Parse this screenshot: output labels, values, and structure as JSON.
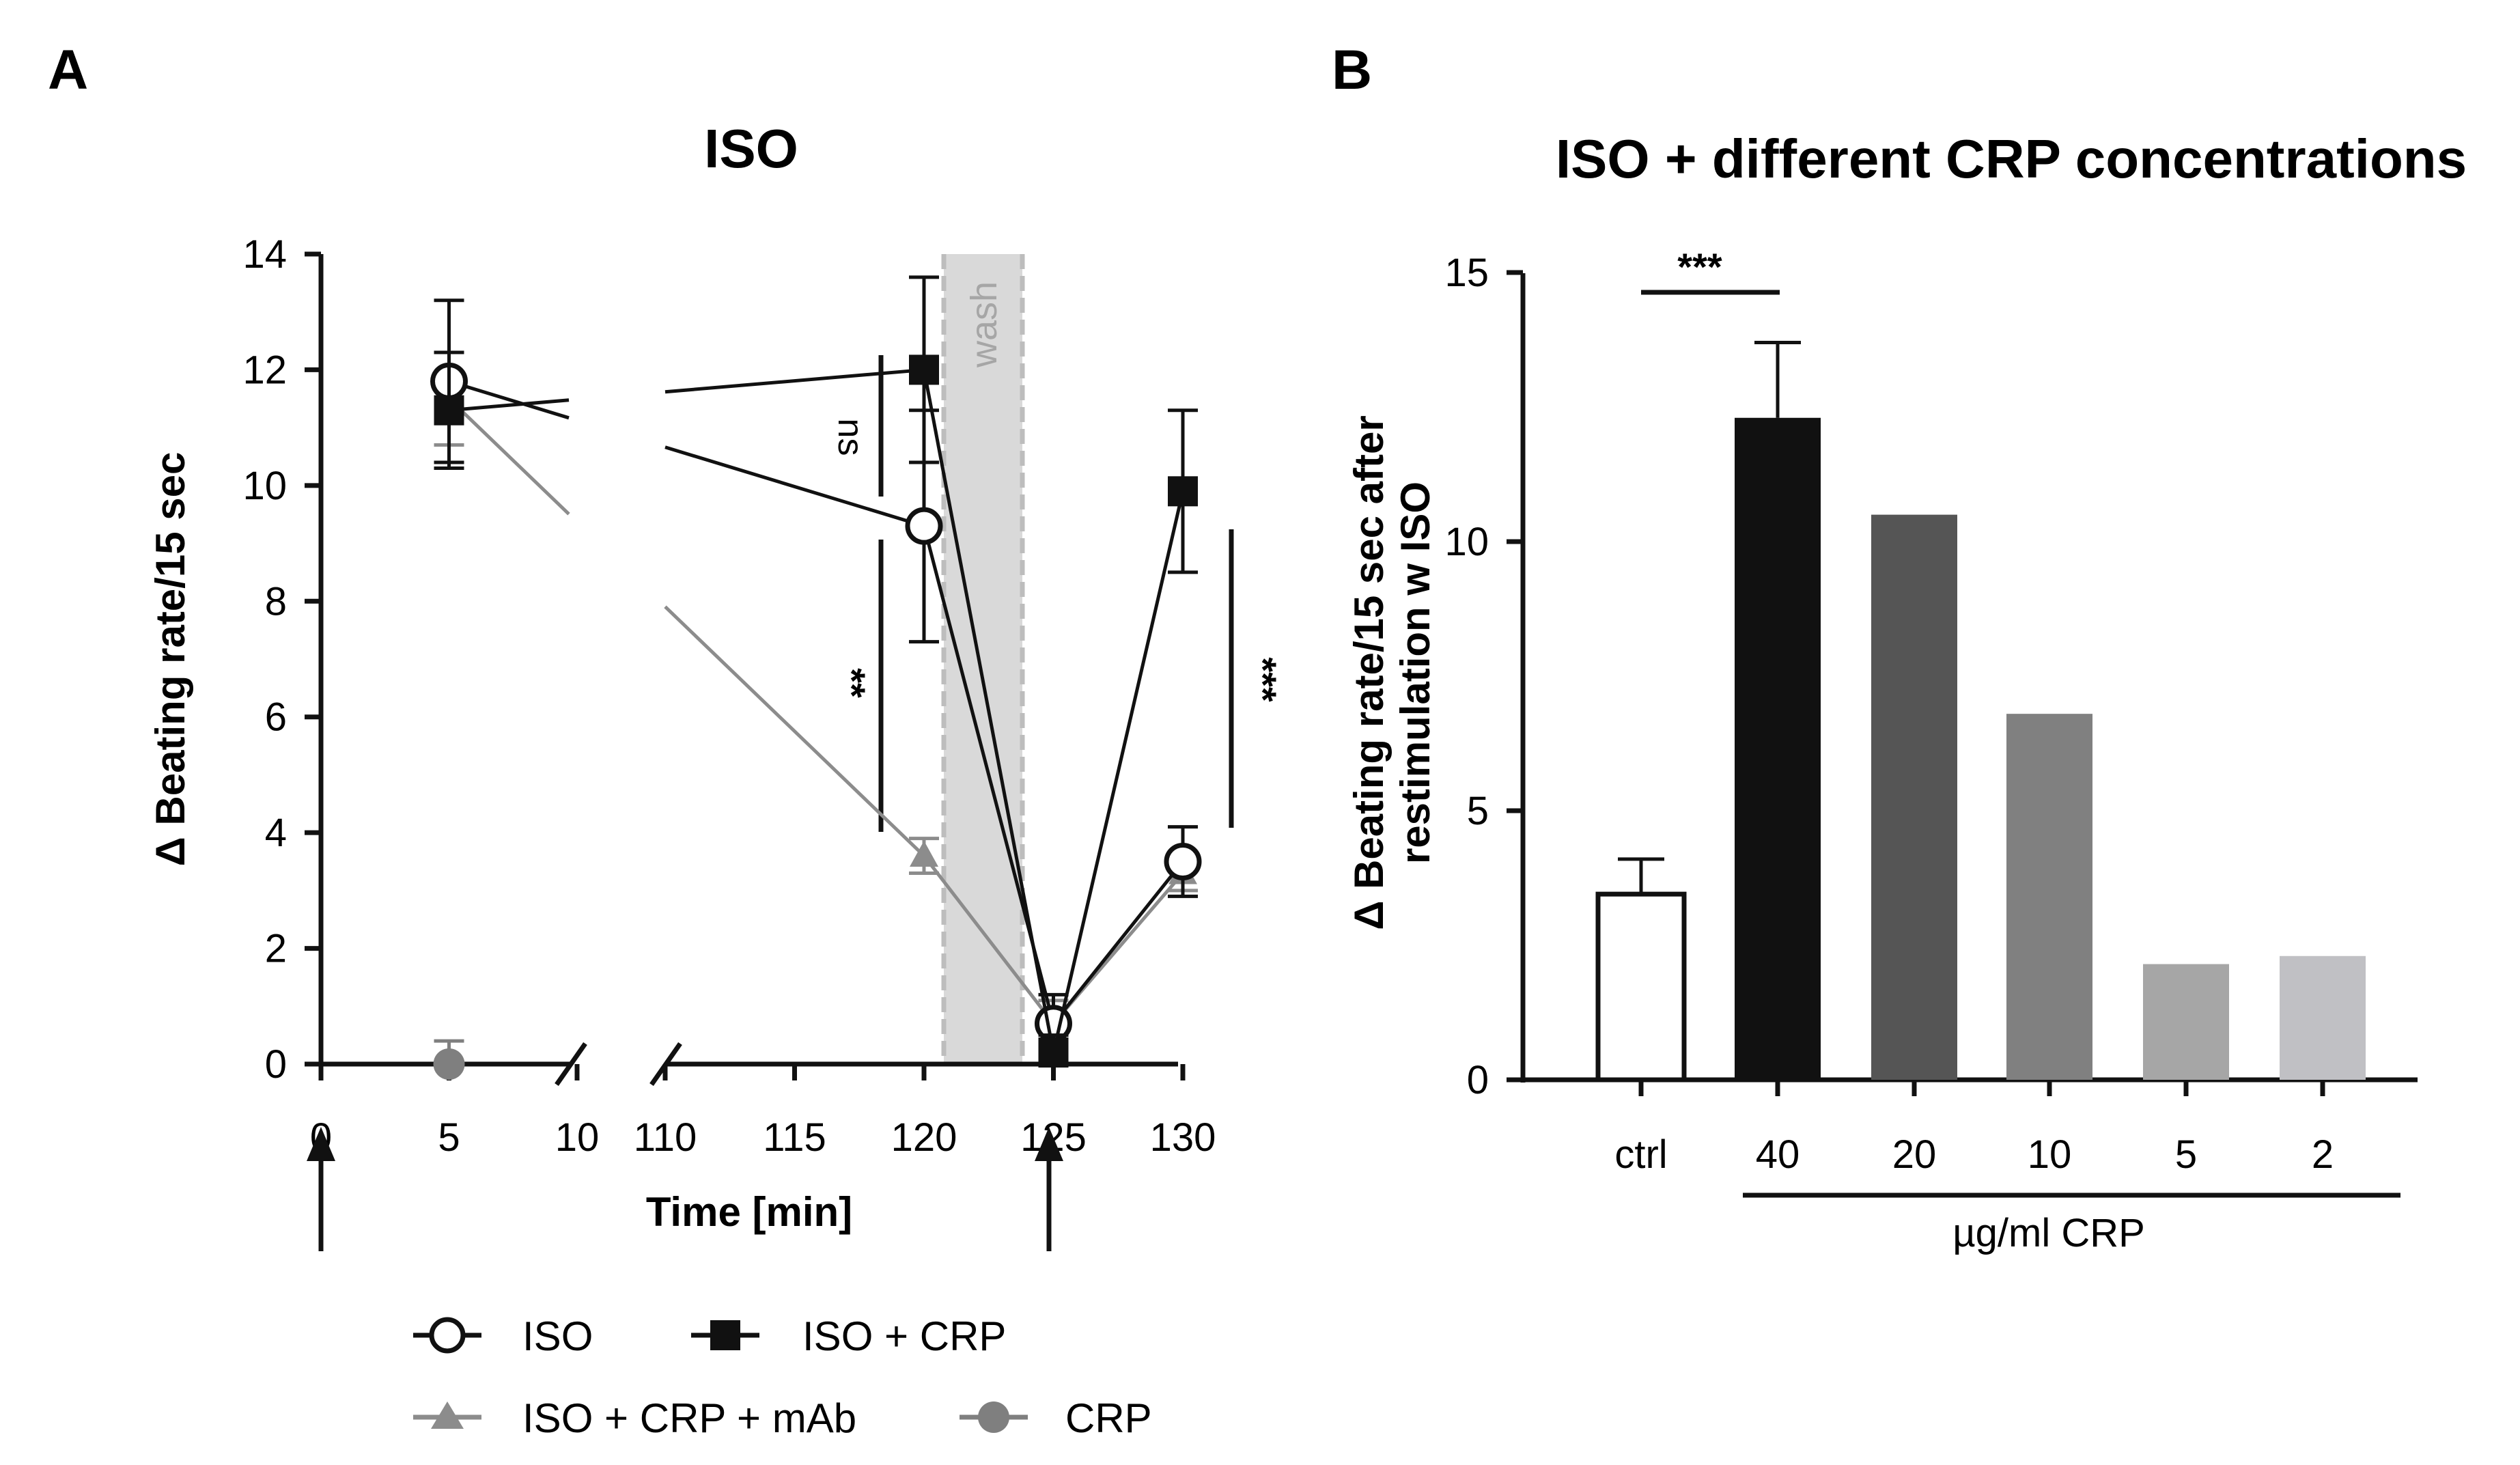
{
  "panel_a": {
    "letter": "A",
    "title": "ISO",
    "ylabel": "Δ Beating rate/15 sec",
    "xlabel": "Time [min]",
    "wash_label": "wash",
    "sig_labels": [
      "ns",
      "**",
      "***"
    ]
  },
  "panel_b": {
    "letter": "B",
    "title": "ISO + different CRP concentrations",
    "ylabel_lines": [
      "Δ Beating rate/15 sec after",
      "restimulation w ISO"
    ],
    "group_label": "µg/ml CRP",
    "sig_label": "***"
  },
  "legend": {
    "items": [
      "ISO",
      "ISO + CRP",
      "ISO + CRP + mAb",
      "CRP"
    ]
  },
  "colors": {
    "black": "#111111",
    "mab_gray": "#8c8c8c",
    "crp_gray": "#7f7f7f",
    "wash_fill": "#d9d9d9",
    "wash_text": "#a6a6a6",
    "bar_20": "#555555",
    "bar_10": "#808080",
    "bar_5": "#a6a6a6",
    "bar_2": "#c0c0c4"
  },
  "chart_data": [
    {
      "type": "line",
      "title": "ISO",
      "xlabel": "Time [min]",
      "ylabel": "Δ Beating rate/15 sec",
      "ylim": [
        0,
        14
      ],
      "yticks": [
        0,
        2,
        4,
        6,
        8,
        10,
        12,
        14
      ],
      "xticks": [
        0,
        5,
        10,
        110,
        115,
        120,
        125,
        130
      ],
      "x_axis_break": [
        10,
        110
      ],
      "wash_interval": [
        121,
        124
      ],
      "stimulation_arrows_at": [
        0,
        125
      ],
      "series": [
        {
          "name": "ISO",
          "x": [
            5,
            120,
            125,
            130
          ],
          "y": [
            11.8,
            9.3,
            0.7,
            3.5
          ],
          "err": [
            1.4,
            2.0,
            0.5,
            0.6
          ]
        },
        {
          "name": "ISO + CRP",
          "x": [
            5,
            120,
            125,
            130
          ],
          "y": [
            11.3,
            12.0,
            0.2,
            9.9
          ],
          "err": [
            1.0,
            1.6,
            0.3,
            1.4
          ]
        },
        {
          "name": "ISO + CRP + mAb",
          "x": [
            5,
            120,
            125,
            130
          ],
          "y": [
            11.5,
            3.6,
            0.7,
            3.3
          ],
          "err": [
            0.8,
            0.3,
            0.4,
            0.3
          ]
        },
        {
          "name": "CRP",
          "x": [
            5
          ],
          "y": [
            0.0
          ],
          "err": [
            0.4
          ]
        }
      ],
      "annotations": [
        {
          "label": "ns",
          "at_x": 120,
          "y_range": [
            9.9,
            12.2
          ]
        },
        {
          "label": "**",
          "at_x": 120,
          "y_range": [
            4.0,
            9.0
          ]
        },
        {
          "label": "***",
          "at_x": 130,
          "y_range": [
            4.2,
            9.3
          ]
        }
      ]
    },
    {
      "type": "bar",
      "title": "ISO + different CRP concentrations",
      "ylabel": "Δ Beating rate/15 sec after restimulation w ISO",
      "xlabel": "µg/ml CRP",
      "categories": [
        "ctrl",
        "40",
        "20",
        "10",
        "5",
        "2"
      ],
      "values": [
        3.45,
        12.3,
        10.5,
        6.8,
        2.15,
        2.3
      ],
      "errors": [
        0.65,
        1.4,
        null,
        null,
        null,
        null
      ],
      "ylim": [
        0,
        15
      ],
      "yticks": [
        0,
        5,
        10,
        15
      ],
      "annotations": [
        {
          "label": "***",
          "between": [
            "ctrl",
            "40"
          ]
        }
      ]
    }
  ]
}
